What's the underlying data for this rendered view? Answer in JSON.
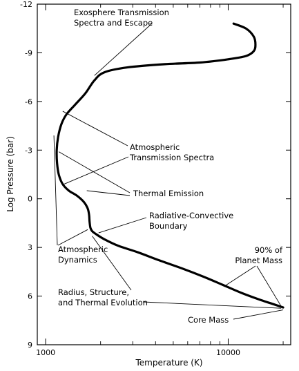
{
  "chart_data": {
    "type": "line",
    "title": "",
    "xlabel": "Temperature (K)",
    "ylabel": "Log Pressure (bar)",
    "x_scale": "log",
    "xlim": [
      900,
      22000
    ],
    "ylim": [
      9,
      -12
    ],
    "x_ticks": [
      {
        "value": 1000,
        "label": "1000"
      },
      {
        "value": 10000,
        "label": "10000"
      }
    ],
    "y_ticks": [
      {
        "value": -12,
        "label": "-12"
      },
      {
        "value": -9,
        "label": "-9"
      },
      {
        "value": -6,
        "label": "-6"
      },
      {
        "value": -3,
        "label": "-3"
      },
      {
        "value": 0,
        "label": "0"
      },
      {
        "value": 3,
        "label": "3"
      },
      {
        "value": 6,
        "label": "6"
      },
      {
        "value": 9,
        "label": "9"
      }
    ],
    "grid": false,
    "series": [
      {
        "x": [
          10700,
          12500,
          13800,
          14100,
          13800,
          12500,
          10000,
          7000,
          4500,
          2800,
          2100,
          1850,
          1650,
          1450,
          1300,
          1220,
          1170,
          1150,
          1155,
          1180,
          1240,
          1340,
          1480,
          1620,
          1700,
          1730,
          1740,
          1760,
          1800,
          1900,
          2100,
          2500,
          3200,
          4200,
          5600,
          7300,
          9300,
          11800,
          14700,
          17700,
          20000
        ],
        "y": [
          -10.8,
          -10.5,
          -10.0,
          -9.5,
          -9.1,
          -8.8,
          -8.6,
          -8.4,
          -8.3,
          -8.1,
          -7.8,
          -7.3,
          -6.5,
          -5.8,
          -5.2,
          -4.6,
          -3.8,
          -3.0,
          -2.2,
          -1.5,
          -0.9,
          -0.5,
          -0.2,
          0.2,
          0.6,
          1.0,
          1.4,
          1.8,
          2.0,
          2.2,
          2.5,
          2.9,
          3.3,
          3.8,
          4.3,
          4.8,
          5.3,
          5.8,
          6.2,
          6.5,
          6.7
        ]
      }
    ],
    "annotations": [
      {
        "lines": [
          "Exosphere Transmission",
          "Spectra and Escape"
        ],
        "targets": [
          {
            "x": 1850,
            "y": -7.6
          }
        ]
      },
      {
        "lines": [
          "Atmospheric",
          "Transmission Spectra"
        ],
        "targets": [
          {
            "x": 1240,
            "y": -5.4
          },
          {
            "x": 1260,
            "y": -0.9
          }
        ]
      },
      {
        "lines": [
          "Thermal Emission"
        ],
        "targets": [
          {
            "x": 1180,
            "y": -2.9
          },
          {
            "x": 1680,
            "y": -0.5
          }
        ]
      },
      {
        "lines": [
          "Radiative-Convective",
          "Boundary"
        ],
        "targets": [
          {
            "x": 1950,
            "y": 2.1
          }
        ]
      },
      {
        "lines": [
          "Atmospheric",
          "Dynamics"
        ],
        "targets": [
          {
            "x": 1110,
            "y": -3.9
          },
          {
            "x": 1700,
            "y": 1.9
          }
        ]
      },
      {
        "lines": [
          "90% of",
          "Planet Mass"
        ],
        "targets": [
          {
            "x": 9500,
            "y": 5.4
          },
          {
            "x": 19800,
            "y": 6.75
          }
        ]
      },
      {
        "lines": [
          "Radius, Structure,",
          "and Thermal Evolution"
        ],
        "targets": [
          {
            "x": 1800,
            "y": 2.3
          },
          {
            "x": 19500,
            "y": 6.75
          }
        ]
      },
      {
        "lines": [
          "Core Mass"
        ],
        "targets": [
          {
            "x": 20000,
            "y": 6.85
          }
        ]
      }
    ]
  }
}
